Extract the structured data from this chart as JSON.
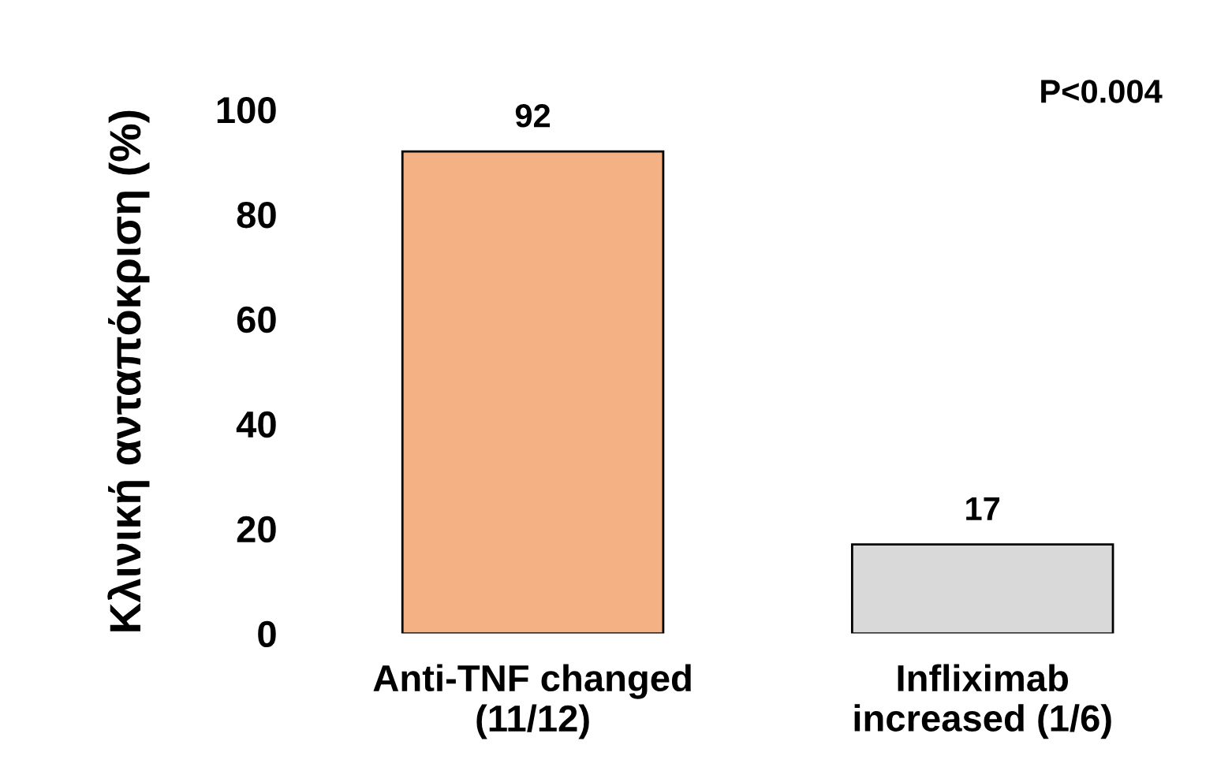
{
  "chart_data": {
    "type": "bar",
    "ylabel": "Κλινική ανταπόκριση (%)",
    "categories": [
      "Anti-TNF changed\n(11/12)",
      "Infliximab\nincreased (1/6)"
    ],
    "values": [
      92,
      17
    ],
    "colors": [
      "#f4b183",
      "#d9d9d9"
    ],
    "ylim": [
      0,
      100
    ],
    "yticks": [
      0,
      20,
      40,
      60,
      80,
      100
    ],
    "grid": false,
    "data_labels": true,
    "annotations": [
      "P<0.004"
    ]
  }
}
